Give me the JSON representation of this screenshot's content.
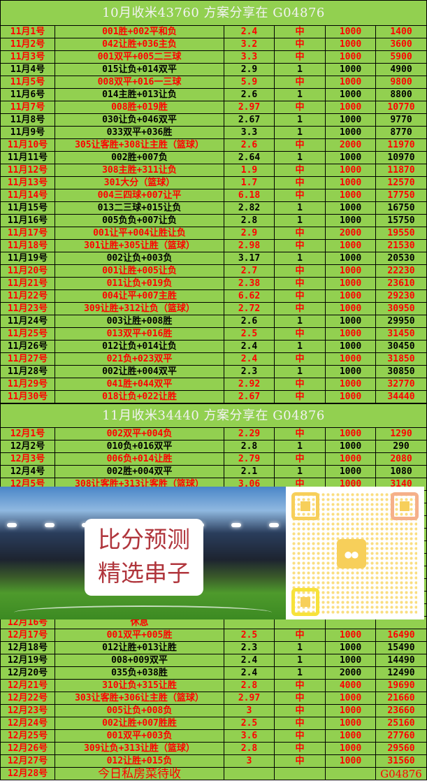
{
  "colors": {
    "background": "#92d050",
    "hit": "#ff0000",
    "miss": "#000000",
    "title_text": "#f2f2f2"
  },
  "section1": {
    "title": "10月收米43760  方案分享在 G04876",
    "rows": [
      {
        "date": "11月1号",
        "pick": "001胜+002平和负",
        "odds": "2.4",
        "result": "中",
        "stake": "1000",
        "total": "1400",
        "hit": true
      },
      {
        "date": "11月2号",
        "pick": "042让胜+036主负",
        "odds": "3.2",
        "result": "中",
        "stake": "1000",
        "total": "3600",
        "hit": true
      },
      {
        "date": "11月3号",
        "pick": "001双平+005二三球",
        "odds": "3.3",
        "result": "中",
        "stake": "1000",
        "total": "5900",
        "hit": true
      },
      {
        "date": "11月4号",
        "pick": "015让负+014双平",
        "odds": "2.9",
        "result": "1",
        "stake": "1000",
        "total": "4900",
        "hit": false
      },
      {
        "date": "11月5号",
        "pick": "008双平+016一三球",
        "odds": "5.9",
        "result": "中",
        "stake": "1000",
        "total": "9800",
        "hit": true
      },
      {
        "date": "11月6号",
        "pick": "014主胜+013让负",
        "odds": "2.6",
        "result": "1",
        "stake": "1000",
        "total": "8800",
        "hit": false
      },
      {
        "date": "11月7号",
        "pick": "008胜+019胜",
        "odds": "2.97",
        "result": "中",
        "stake": "1000",
        "total": "10770",
        "hit": true
      },
      {
        "date": "11月8号",
        "pick": "030让负+046双平",
        "odds": "2.67",
        "result": "1",
        "stake": "1000",
        "total": "9770",
        "hit": false
      },
      {
        "date": "11月9号",
        "pick": "033双平+036胜",
        "odds": "3.3",
        "result": "1",
        "stake": "1000",
        "total": "8770",
        "hit": false
      },
      {
        "date": "11月10号",
        "pick": "305让客胜+308让主胜（篮球）",
        "odds": "2.6",
        "result": "中",
        "stake": "2000",
        "total": "11970",
        "hit": true
      },
      {
        "date": "11月11号",
        "pick": "002胜+007负",
        "odds": "2.64",
        "result": "1",
        "stake": "1000",
        "total": "10970",
        "hit": false
      },
      {
        "date": "11月12号",
        "pick": "308主胜+311让负",
        "odds": "1.9",
        "result": "中",
        "stake": "1000",
        "total": "11870",
        "hit": true
      },
      {
        "date": "11月13号",
        "pick": "301大分（篮球）",
        "odds": "1.7",
        "result": "中",
        "stake": "1000",
        "total": "12570",
        "hit": true
      },
      {
        "date": "11月14号",
        "pick": "004三四球+007让平",
        "odds": "6.18",
        "result": "中",
        "stake": "1000",
        "total": "17750",
        "hit": true
      },
      {
        "date": "11月15号",
        "pick": "013二三球+015让负",
        "odds": "2.82",
        "result": "1",
        "stake": "1000",
        "total": "16750",
        "hit": false
      },
      {
        "date": "11月16号",
        "pick": "005负负+007让负",
        "odds": "2.8",
        "result": "1",
        "stake": "1000",
        "total": "15750",
        "hit": false
      },
      {
        "date": "11月17号",
        "pick": "001让平+004让胜让负",
        "odds": "2.9",
        "result": "中",
        "stake": "2000",
        "total": "19550",
        "hit": true
      },
      {
        "date": "11月18号",
        "pick": "301让胜+305让胜（篮球）",
        "odds": "2.98",
        "result": "中",
        "stake": "1000",
        "total": "21530",
        "hit": true
      },
      {
        "date": "11月19号",
        "pick": "002让负+003负",
        "odds": "3.17",
        "result": "1",
        "stake": "1000",
        "total": "20530",
        "hit": false
      },
      {
        "date": "11月20号",
        "pick": "001让胜+005让负",
        "odds": "2.7",
        "result": "中",
        "stake": "1000",
        "total": "22230",
        "hit": true
      },
      {
        "date": "11月21号",
        "pick": "011让负+019负",
        "odds": "2.38",
        "result": "中",
        "stake": "1000",
        "total": "23610",
        "hit": true
      },
      {
        "date": "11月22号",
        "pick": "004让平+007主胜",
        "odds": "6.62",
        "result": "中",
        "stake": "1000",
        "total": "29230",
        "hit": true
      },
      {
        "date": "11月23号",
        "pick": "309让胜+312让负（篮球）",
        "odds": "2.72",
        "result": "中",
        "stake": "1000",
        "total": "30950",
        "hit": true
      },
      {
        "date": "11月24号",
        "pick": "003让胜+008胜",
        "odds": "2.6",
        "result": "1",
        "stake": "1000",
        "total": "29950",
        "hit": false
      },
      {
        "date": "11月25号",
        "pick": "013双平+016胜",
        "odds": "2.5",
        "result": "中",
        "stake": "1000",
        "total": "31450",
        "hit": true
      },
      {
        "date": "11月26号",
        "pick": "012让负+014让负",
        "odds": "2.4",
        "result": "1",
        "stake": "1000",
        "total": "30450",
        "hit": false
      },
      {
        "date": "11月27号",
        "pick": "021负+023双平",
        "odds": "2.4",
        "result": "中",
        "stake": "1000",
        "total": "31850",
        "hit": true
      },
      {
        "date": "11月28号",
        "pick": "002让胜+004双平",
        "odds": "2.3",
        "result": "1",
        "stake": "1000",
        "total": "30850",
        "hit": false
      },
      {
        "date": "11月29号",
        "pick": "041胜+044双平",
        "odds": "2.92",
        "result": "中",
        "stake": "1000",
        "total": "32770",
        "hit": true
      },
      {
        "date": "11月30号",
        "pick": "018让负+022让胜",
        "odds": "2.67",
        "result": "中",
        "stake": "1000",
        "total": "34440",
        "hit": true
      }
    ]
  },
  "section2": {
    "title": "11月收米34440  方案分享在 G04876",
    "rows_top": [
      {
        "date": "12月1号",
        "pick": "002双平+004负",
        "odds": "2.29",
        "result": "中",
        "stake": "1000",
        "total": "1290",
        "hit": true
      },
      {
        "date": "12月2号",
        "pick": "010负+016双平",
        "odds": "2.8",
        "result": "1",
        "stake": "1000",
        "total": "290",
        "hit": false
      },
      {
        "date": "12月3号",
        "pick": "006负+014让胜",
        "odds": "2.79",
        "result": "中",
        "stake": "1000",
        "total": "2080",
        "hit": true
      },
      {
        "date": "12月4号",
        "pick": "002胜+004双平",
        "odds": "2.1",
        "result": "1",
        "stake": "1000",
        "total": "1080",
        "hit": false
      },
      {
        "date": "12月5号",
        "pick": "308让客胜+313让客胜（篮球）",
        "odds": "3.06",
        "result": "中",
        "stake": "1000",
        "total": "3140",
        "hit": true
      }
    ],
    "rows_bottom": [
      {
        "date": "12月16号",
        "pick": "休息",
        "odds": "",
        "result": "",
        "stake": "",
        "total": "",
        "hit": true
      },
      {
        "date": "12月17号",
        "pick": "001双平+005胜",
        "odds": "2.5",
        "result": "中",
        "stake": "1000",
        "total": "16490",
        "hit": true
      },
      {
        "date": "12月18号",
        "pick": "012让胜+013让胜",
        "odds": "2.3",
        "result": "1",
        "stake": "1000",
        "total": "15490",
        "hit": false
      },
      {
        "date": "12月19号",
        "pick": "008+009双平",
        "odds": "2.4",
        "result": "1",
        "stake": "1000",
        "total": "14490",
        "hit": false
      },
      {
        "date": "12月20号",
        "pick": "035负+038胜",
        "odds": "2.4",
        "result": "1",
        "stake": "2000",
        "total": "12490",
        "hit": false
      },
      {
        "date": "12月21号",
        "pick": "310让负+315让胜",
        "odds": "2.8",
        "result": "中",
        "stake": "4000",
        "total": "19690",
        "hit": true
      },
      {
        "date": "12月22号",
        "pick": "303让客胜+306让主胜（篮球）",
        "odds": "2.97",
        "result": "中",
        "stake": "1000",
        "total": "21660",
        "hit": true
      },
      {
        "date": "12月23号",
        "pick": "005让负+008负",
        "odds": "3",
        "result": "中",
        "stake": "1000",
        "total": "23660",
        "hit": true
      },
      {
        "date": "12月24号",
        "pick": "002让胜+007胜胜",
        "odds": "2.5",
        "result": "中",
        "stake": "1000",
        "total": "25160",
        "hit": true
      },
      {
        "date": "12月25号",
        "pick": "001双平+003负",
        "odds": "3.6",
        "result": "中",
        "stake": "1000",
        "total": "27760",
        "hit": true
      },
      {
        "date": "12月26号",
        "pick": "309让负+313让胜（篮球）",
        "odds": "2.8",
        "result": "中",
        "stake": "1000",
        "total": "29560",
        "hit": true
      },
      {
        "date": "12月27号",
        "pick": "012让胜+015负",
        "odds": "3",
        "result": "中",
        "stake": "1000",
        "total": "31560",
        "hit": true
      }
    ],
    "last_row": {
      "date": "12月28号",
      "pick": "今日私房菜待收",
      "total": "G04876"
    }
  },
  "promo": {
    "line1": "比分预测",
    "line2": "精选串子",
    "icons": [
      "stadium-image",
      "qr-code-icon",
      "wechat-icon"
    ]
  }
}
